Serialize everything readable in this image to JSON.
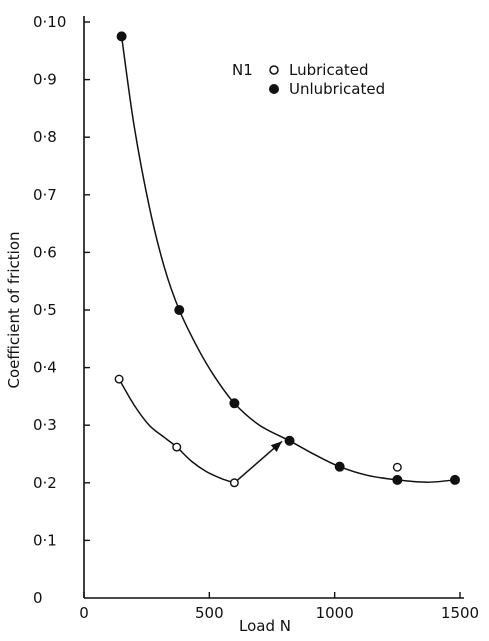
{
  "chart_data": {
    "type": "scatter",
    "title": "",
    "xlabel": "Load N",
    "ylabel": "Coefficient of friction",
    "xlim": [
      0,
      1500
    ],
    "ylim": [
      0,
      0.1
    ],
    "x_ticks": [
      {
        "value": 0,
        "label": "0"
      },
      {
        "value": 500,
        "label": "500"
      },
      {
        "value": 1000,
        "label": "1000"
      },
      {
        "value": 1500,
        "label": "1500"
      }
    ],
    "y_ticks": [
      {
        "value": 0.0,
        "label": "0"
      },
      {
        "value": 0.01,
        "label": "0·1"
      },
      {
        "value": 0.02,
        "label": "0·2"
      },
      {
        "value": 0.03,
        "label": "0·3"
      },
      {
        "value": 0.04,
        "label": "0·4"
      },
      {
        "value": 0.05,
        "label": "0·5"
      },
      {
        "value": 0.06,
        "label": "0·6"
      },
      {
        "value": 0.07,
        "label": "0·7"
      },
      {
        "value": 0.08,
        "label": "0·8"
      },
      {
        "value": 0.09,
        "label": "0·9"
      },
      {
        "value": 0.1,
        "label": "0·10"
      }
    ],
    "grid": false,
    "legend_position": "top-right",
    "legend_prefix": "N1",
    "series": [
      {
        "name": "Lubricated",
        "marker": "open-circle",
        "x": [
          140,
          370,
          600,
          1250
        ],
        "y": [
          0.038,
          0.0262,
          0.02,
          0.0227
        ]
      },
      {
        "name": "Unlubricated",
        "marker": "filled-circle",
        "x": [
          150,
          380,
          600,
          820,
          1020,
          1250,
          1480
        ],
        "y": [
          0.0975,
          0.05,
          0.0338,
          0.0273,
          0.0228,
          0.0205,
          0.0205
        ]
      }
    ],
    "curves": [
      {
        "series": "Unlubricated",
        "x": [
          150,
          200,
          260,
          320,
          380,
          450,
          520,
          600,
          700,
          820,
          920,
          1020,
          1130,
          1250,
          1370,
          1480
        ],
        "y": [
          0.0975,
          0.082,
          0.068,
          0.0575,
          0.05,
          0.0437,
          0.0385,
          0.0338,
          0.03,
          0.0273,
          0.0249,
          0.0228,
          0.0213,
          0.0205,
          0.0201,
          0.0205
        ]
      },
      {
        "series": "Lubricated",
        "x": [
          140,
          200,
          260,
          320,
          370,
          430,
          490,
          550,
          600
        ],
        "y": [
          0.038,
          0.0335,
          0.03,
          0.0279,
          0.0262,
          0.0237,
          0.0219,
          0.0207,
          0.02
        ]
      }
    ],
    "arrows": [
      {
        "from": [
          600,
          0.02
        ],
        "to": [
          790,
          0.0272
        ]
      }
    ],
    "colors": {
      "ink": "#111111",
      "background": "#ffffff"
    }
  }
}
